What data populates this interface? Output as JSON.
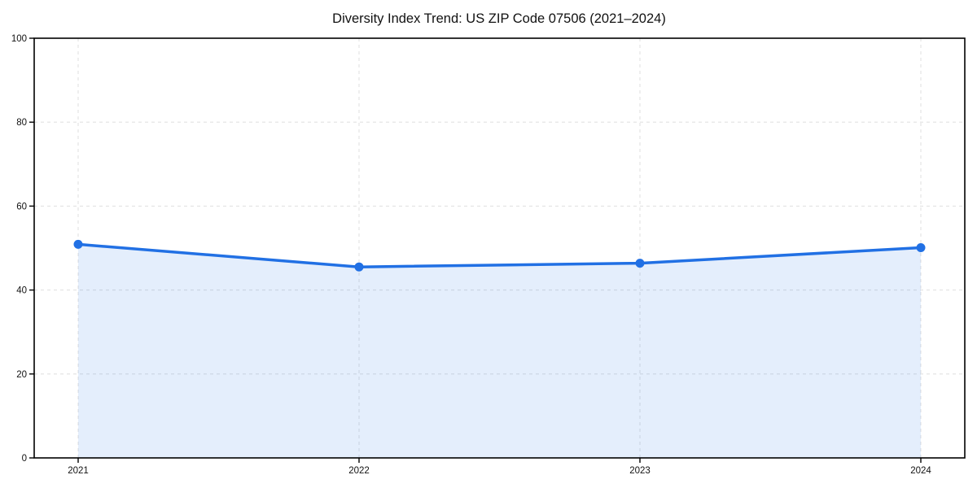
{
  "chart_data": {
    "type": "area",
    "title": "Diversity Index Trend: US ZIP Code 07506 (2021–2024)",
    "series_name": "Diversity Index",
    "x": [
      "2021",
      "2022",
      "2023",
      "2024"
    ],
    "values": [
      50.9,
      45.5,
      46.4,
      50.1
    ],
    "xlabel": "",
    "ylabel": "",
    "ylim": [
      0,
      100
    ],
    "yticks": [
      0,
      20,
      40,
      60,
      80,
      100
    ],
    "grid": "dashed",
    "legend_position": "none",
    "colors": {
      "line": "#2170e4",
      "marker": "#2170e4",
      "fill": "#2170e4",
      "fill_opacity": "0.12",
      "grid": "#e2e2e2",
      "axis": "#000000",
      "text": "#111111",
      "background": "#ffffff"
    }
  }
}
